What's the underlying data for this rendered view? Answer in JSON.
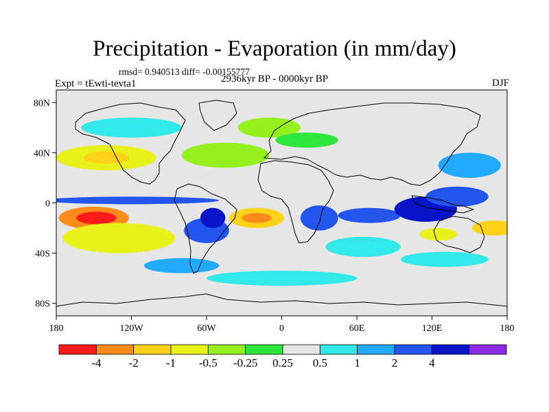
{
  "chart_data": {
    "type": "heatmap",
    "title": "Precipitation - Evaporation (in mm/day)",
    "stats_text": "rmsd= 0.940513 diff= -0.00155777",
    "period_text": "2936kyr BP - 0000kyr BP",
    "experiment_text": "Expt = tEwti-tevta1",
    "season_text": "DJF",
    "projection": "cylindrical equidistant",
    "xlim": [
      -180,
      180
    ],
    "ylim": [
      -90,
      90
    ],
    "x_ticks": [
      "180",
      "120W",
      "60W",
      "0",
      "60E",
      "120E",
      "180"
    ],
    "y_ticks": [
      "80N",
      "40N",
      "0",
      "40S",
      "80S"
    ],
    "colorbar": {
      "labels": [
        "-4",
        "-2",
        "-1",
        "-0.5",
        "-0.25",
        "0.25",
        "0.5",
        "1",
        "2",
        "4"
      ],
      "colors": [
        "#ff1a1a",
        "#ff8c1a",
        "#ffd21a",
        "#e8f21a",
        "#96f01e",
        "#2ee63c",
        "#e6e6e6",
        "#33e8e8",
        "#22aaff",
        "#2255ee",
        "#0a14c8",
        "#8a2be2"
      ]
    },
    "fields": [
      {
        "lon": -150,
        "lat": -12,
        "rx": 28,
        "ry": 9,
        "level": 1
      },
      {
        "lon": -148,
        "lat": -12,
        "rx": 16,
        "ry": 5,
        "level": 0
      },
      {
        "lon": -130,
        "lat": -28,
        "rx": 45,
        "ry": 12,
        "level": 3
      },
      {
        "lon": -140,
        "lat": 36,
        "rx": 40,
        "ry": 10,
        "level": 3
      },
      {
        "lon": -140,
        "lat": 36,
        "rx": 18,
        "ry": 5,
        "level": 2
      },
      {
        "lon": -120,
        "lat": 2,
        "rx": 70,
        "ry": 3,
        "level": 9
      },
      {
        "lon": -45,
        "lat": 38,
        "rx": 35,
        "ry": 10,
        "level": 4
      },
      {
        "lon": -60,
        "lat": -22,
        "rx": 18,
        "ry": 10,
        "level": 9
      },
      {
        "lon": -55,
        "lat": -12,
        "rx": 10,
        "ry": 8,
        "level": 10
      },
      {
        "lon": -20,
        "lat": -12,
        "rx": 22,
        "ry": 8,
        "level": 2
      },
      {
        "lon": -20,
        "lat": -12,
        "rx": 12,
        "ry": 4,
        "level": 1
      },
      {
        "lon": 30,
        "lat": -12,
        "rx": 15,
        "ry": 10,
        "level": 9
      },
      {
        "lon": 70,
        "lat": -10,
        "rx": 25,
        "ry": 6,
        "level": 9
      },
      {
        "lon": 65,
        "lat": -35,
        "rx": 30,
        "ry": 8,
        "level": 7
      },
      {
        "lon": 115,
        "lat": -5,
        "rx": 25,
        "ry": 10,
        "level": 10
      },
      {
        "lon": 140,
        "lat": 5,
        "rx": 25,
        "ry": 8,
        "level": 9
      },
      {
        "lon": 125,
        "lat": -25,
        "rx": 15,
        "ry": 5,
        "level": 3
      },
      {
        "lon": 150,
        "lat": 30,
        "rx": 25,
        "ry": 10,
        "level": 8
      },
      {
        "lon": 170,
        "lat": -20,
        "rx": 18,
        "ry": 6,
        "level": 2
      },
      {
        "lon": -10,
        "lat": 60,
        "rx": 25,
        "ry": 8,
        "level": 4
      },
      {
        "lon": 20,
        "lat": 50,
        "rx": 25,
        "ry": 6,
        "level": 5
      },
      {
        "lon": 130,
        "lat": -45,
        "rx": 35,
        "ry": 6,
        "level": 7
      },
      {
        "lon": -80,
        "lat": -50,
        "rx": 30,
        "ry": 6,
        "level": 8
      },
      {
        "lon": 0,
        "lat": -60,
        "rx": 60,
        "ry": 6,
        "level": 7
      },
      {
        "lon": -120,
        "lat": 60,
        "rx": 40,
        "ry": 8,
        "level": 7
      }
    ],
    "grid": false
  }
}
